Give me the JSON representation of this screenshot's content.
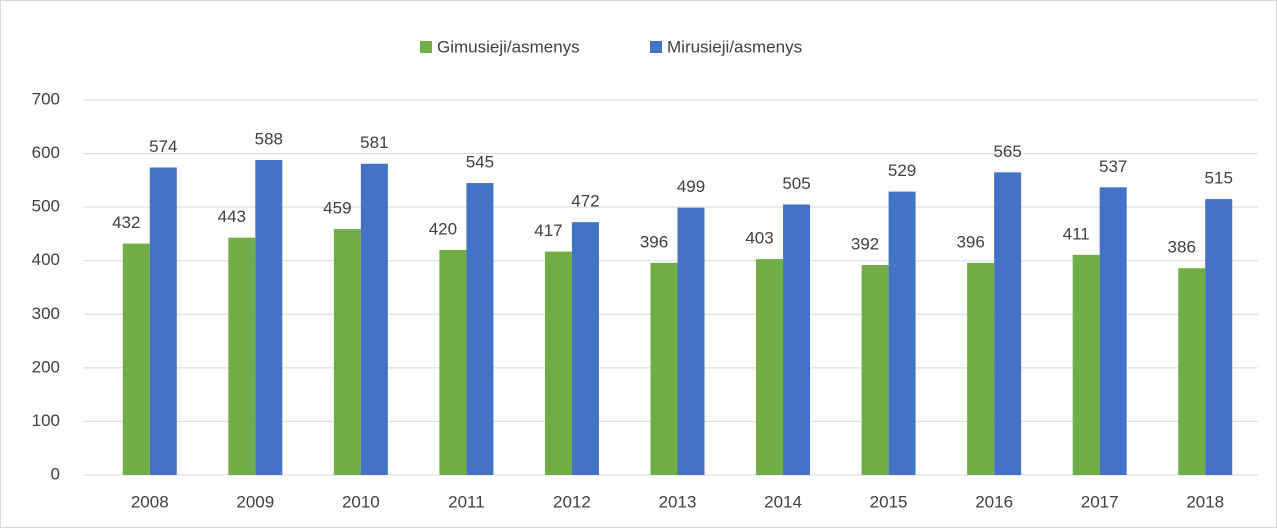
{
  "chart_data": {
    "type": "bar",
    "categories": [
      "2008",
      "2009",
      "2010",
      "2011",
      "2012",
      "2013",
      "2014",
      "2015",
      "2016",
      "2017",
      "2018"
    ],
    "series": [
      {
        "name": "Gimusieji/asmenys",
        "color": "#70ad47",
        "values": [
          432,
          443,
          459,
          420,
          417,
          396,
          403,
          392,
          396,
          411,
          386
        ]
      },
      {
        "name": "Mirusieji/asmenys",
        "color": "#4472c4",
        "values": [
          574,
          588,
          581,
          545,
          472,
          499,
          505,
          529,
          565,
          537,
          515
        ]
      }
    ],
    "ylim": [
      0,
      700
    ],
    "yticks": [
      0,
      100,
      200,
      300,
      400,
      500,
      600,
      700
    ],
    "grid": true,
    "legend": "top"
  }
}
